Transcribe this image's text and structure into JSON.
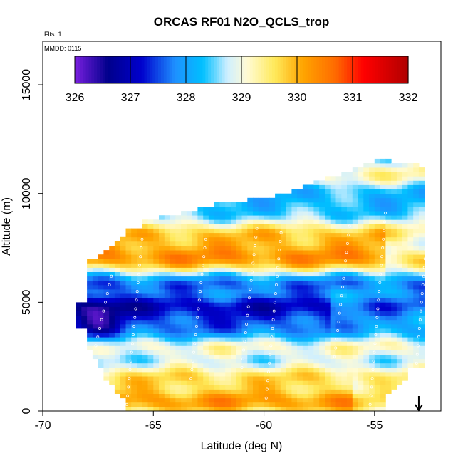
{
  "chart_data": {
    "type": "heatmap",
    "title": "ORCAS RF01 N2O_QCLS_trop",
    "subtitle_flights": "Flts: 1",
    "subtitle_date": "MMDD: 0115",
    "xlabel": "Latitude (deg N)",
    "ylabel": "Altitude (m)",
    "xlim": [
      -70,
      -52
    ],
    "ylim": [
      0,
      17000
    ],
    "x_ticks": [
      -70,
      -65,
      -60,
      -55
    ],
    "y_ticks": [
      0,
      5000,
      10000,
      15000
    ],
    "x_tick_labels": [
      "-70",
      "-65",
      "-60",
      "-55"
    ],
    "y_tick_labels": [
      "0",
      "5000",
      "10000",
      "15000"
    ],
    "colorbar": {
      "min": 326,
      "max": 332,
      "ticks": [
        326,
        327,
        328,
        329,
        330,
        331,
        332
      ],
      "tick_labels": [
        "326",
        "327",
        "328",
        "329",
        "330",
        "331",
        "332"
      ],
      "colors": [
        "#7a1fe0",
        "#00008b",
        "#0000cd",
        "#1e90ff",
        "#00bfff",
        "#cfefff",
        "#fffbd5",
        "#ffe95a",
        "#ffa500",
        "#ff6a00",
        "#ff0000",
        "#b00000"
      ]
    },
    "field_description": "curtain of N2O (ppb) vs latitude and altitude along flight track",
    "arrow_marker_latitude": -53,
    "cell_size": [
      0.25,
      200
    ]
  }
}
